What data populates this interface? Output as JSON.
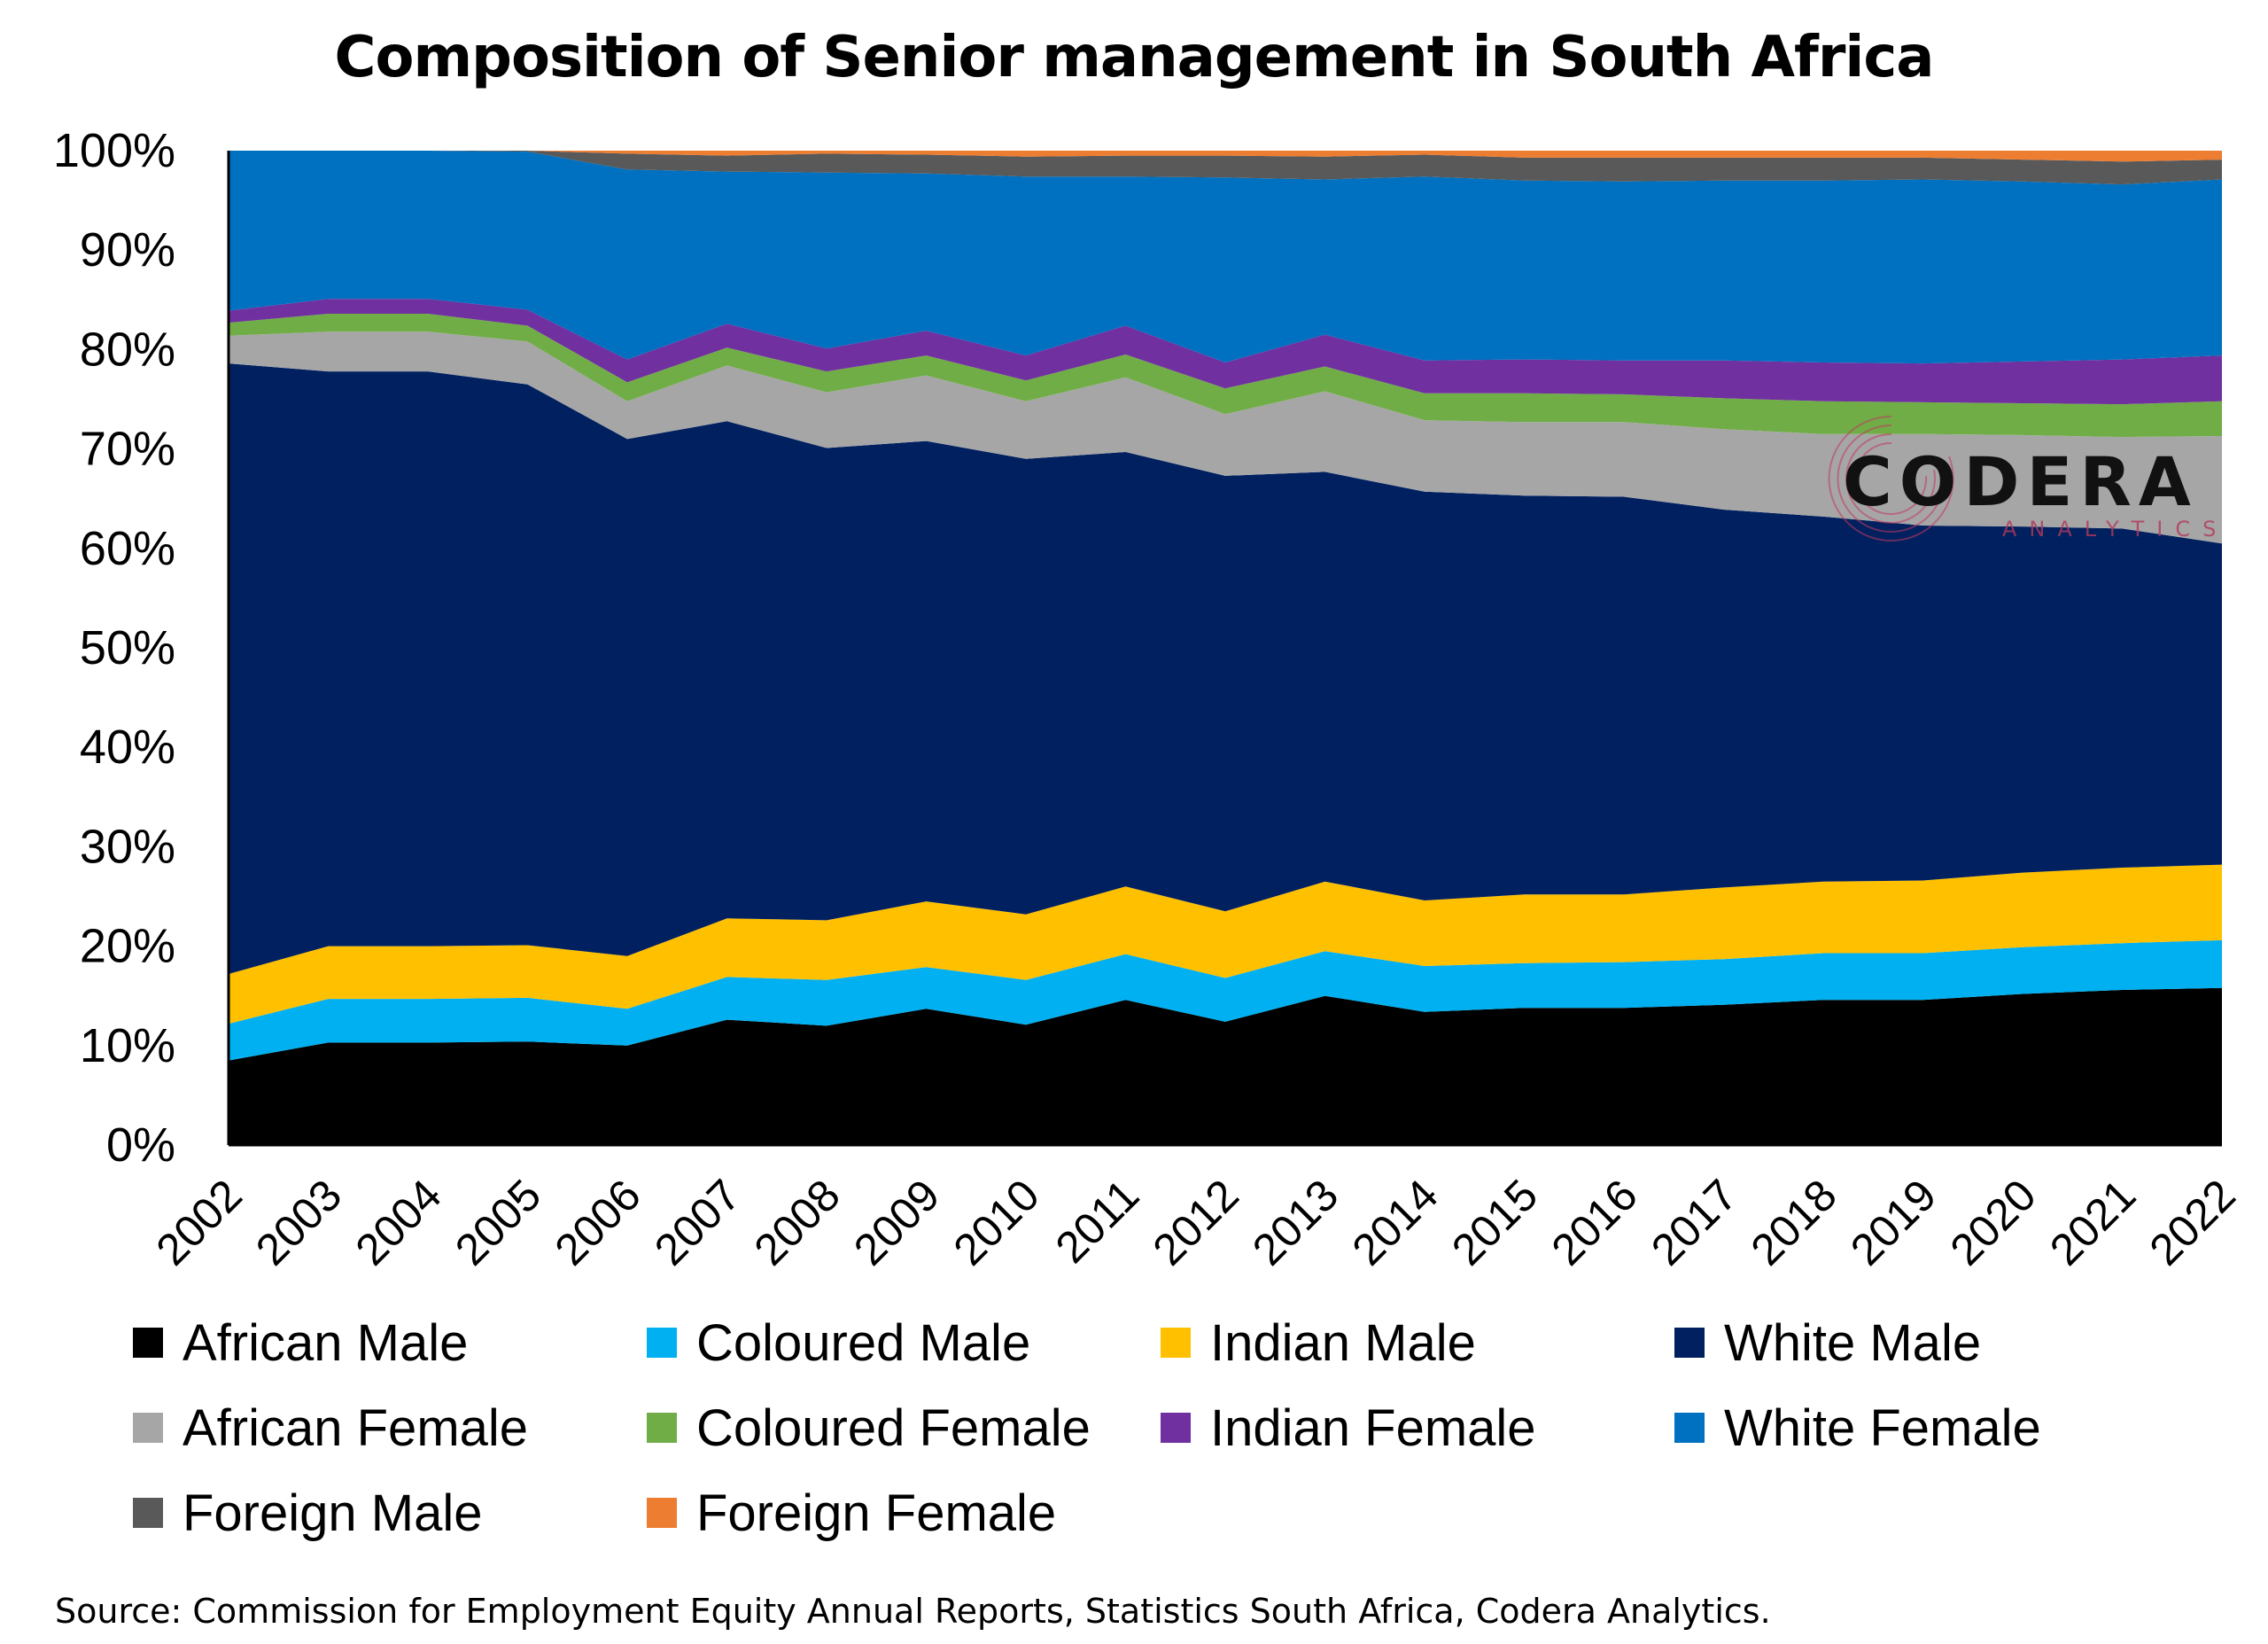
{
  "chart_data": {
    "type": "area",
    "stacked": true,
    "normalized": true,
    "title": "Composition of Senior management in South Africa",
    "xlabel": "",
    "ylabel": "",
    "ylim": [
      0,
      100
    ],
    "y_ticks": [
      "0%",
      "10%",
      "20%",
      "30%",
      "40%",
      "50%",
      "60%",
      "70%",
      "80%",
      "90%",
      "100%"
    ],
    "x": [
      "2002",
      "2003",
      "2004",
      "2005",
      "2006",
      "2007",
      "2008",
      "2009",
      "2010",
      "2011",
      "2012",
      "2013",
      "2014",
      "2015",
      "2016",
      "2017",
      "2018",
      "2019",
      "2020",
      "2021",
      "2022"
    ],
    "grid": false,
    "legend_position": "bottom",
    "series": [
      {
        "name": "African Male",
        "color": "#000000",
        "values": [
          8.5,
          10.3,
          10.3,
          10.4,
          10,
          12.6,
          12,
          13.7,
          12.1,
          14.6,
          12.4,
          15,
          13.4,
          13.8,
          13.8,
          14.1,
          14.6,
          14.6,
          15.2,
          15.6,
          15.8
        ]
      },
      {
        "name": "Coloured Male",
        "color": "#00B0F0",
        "values": [
          3.7,
          4.4,
          4.4,
          4.4,
          3.7,
          4.3,
          4.6,
          4.2,
          4.5,
          4.6,
          4.4,
          4.5,
          4.6,
          4.5,
          4.6,
          4.6,
          4.7,
          4.7,
          4.7,
          4.7,
          4.8
        ]
      },
      {
        "name": "Indian Male",
        "color": "#FFC000",
        "values": [
          5,
          5.3,
          5.3,
          5.3,
          5.3,
          5.9,
          6,
          6.6,
          6.6,
          6.8,
          6.7,
          7,
          6.6,
          6.9,
          6.8,
          7.2,
          7.2,
          7.3,
          7.5,
          7.6,
          7.6
        ]
      },
      {
        "name": "White Male",
        "color": "#002060",
        "values": [
          61.4,
          57.8,
          57.8,
          56.4,
          52,
          50,
          47.5,
          46.3,
          45.8,
          43.7,
          43.8,
          41.2,
          41.1,
          40.1,
          40,
          38,
          36.7,
          35.7,
          34.8,
          34.1,
          32.3
        ]
      },
      {
        "name": "African Female",
        "color": "#A6A6A6",
        "values": [
          2.8,
          4,
          4,
          4.3,
          3.8,
          5.6,
          5.6,
          6.6,
          5.8,
          7.5,
          6.2,
          8.1,
          7.2,
          7.4,
          7.5,
          8.1,
          8.3,
          9.2,
          9.2,
          9.2,
          10.8
        ]
      },
      {
        "name": "Coloured Female",
        "color": "#70AD47",
        "values": [
          1.3,
          1.8,
          1.8,
          1.6,
          1.9,
          1.8,
          2.1,
          2,
          2.1,
          2.3,
          2.6,
          2.5,
          2.7,
          2.9,
          2.8,
          3.1,
          3.3,
          3.2,
          3.2,
          3.3,
          3.5
        ]
      },
      {
        "name": "Indian Female",
        "color": "#7030A0",
        "values": [
          1.2,
          1.5,
          1.5,
          1.6,
          2.3,
          2.4,
          2.3,
          2.5,
          2.5,
          2.9,
          2.6,
          3.2,
          3.3,
          3.4,
          3.4,
          3.8,
          3.9,
          3.9,
          4.2,
          4.5,
          4.6
        ]
      },
      {
        "name": "White Female",
        "color": "#0070C0",
        "values": [
          16.1,
          14.9,
          14.9,
          15.9,
          19.1,
          15.3,
          17.7,
          15.8,
          18,
          15,
          18.6,
          15.6,
          18.5,
          18,
          18,
          18.1,
          18.3,
          18.5,
          18.1,
          17.6,
          17.7
        ]
      },
      {
        "name": "Foreign Male",
        "color": "#595959",
        "values": [
          0,
          0,
          0,
          0.1,
          1.6,
          1.6,
          1.9,
          1.9,
          2,
          2.1,
          2.2,
          2.3,
          2.2,
          2.3,
          2.4,
          2.3,
          2.3,
          2.2,
          2.2,
          2.3,
          2
        ]
      },
      {
        "name": "Foreign Female",
        "color": "#ED7D31",
        "values": [
          0,
          0,
          0,
          0,
          0.3,
          0.5,
          0.3,
          0.4,
          0.6,
          0.5,
          0.5,
          0.6,
          0.4,
          0.7,
          0.7,
          0.7,
          0.7,
          0.7,
          0.9,
          1.1,
          0.9
        ]
      }
    ]
  },
  "source_note": "Source: Commission for Employment Equity Annual Reports, Statistics South Africa, Codera Analytics.",
  "watermark": {
    "word": "CODERA",
    "sub": "ANALYTICS"
  }
}
